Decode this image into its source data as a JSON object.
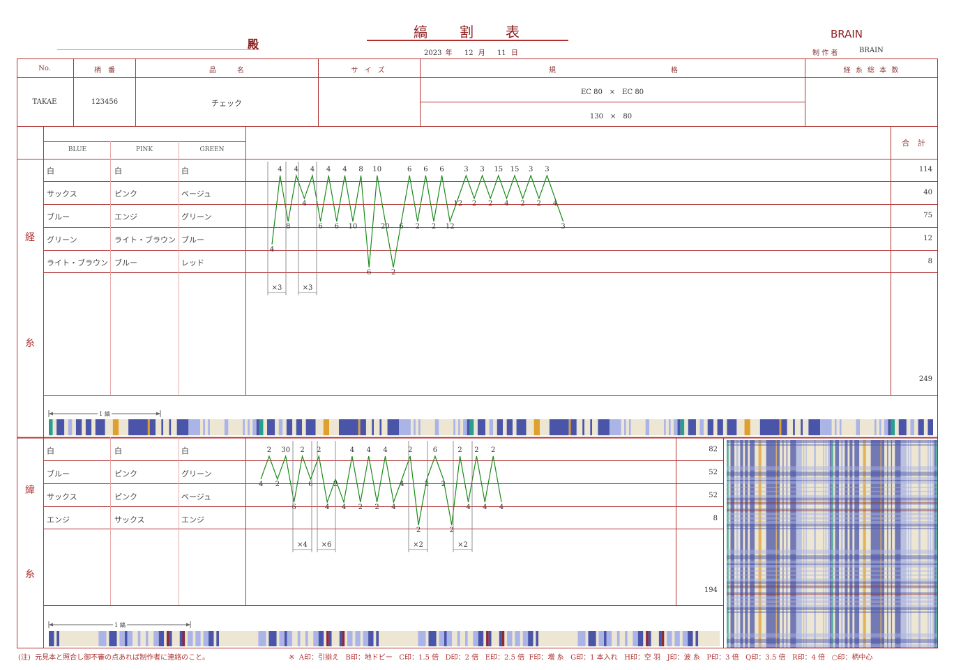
{
  "header": {
    "recipient_suffix": "殿",
    "title": "縞　　割　　表",
    "date": {
      "year": "2023",
      "year_unit": "年",
      "month": "12",
      "month_unit": "月",
      "day": "11",
      "day_unit": "日"
    },
    "brand": "BRAIN",
    "maker_label": "制 作 者",
    "maker_value": "BRAIN"
  },
  "info_table": {
    "headers": {
      "no": "No.",
      "gara_ban": "柄　番",
      "hinmei": "品　　　名",
      "size": "サ イ ズ",
      "kikaku_1": "規",
      "kikaku_2": "格",
      "total_count": "経 糸 総 本 数"
    },
    "values": {
      "no": "TAKAE",
      "gara_ban": "123456",
      "hinmei": "チェック",
      "size": "",
      "spec_line1": "EC 80　×　EC 80",
      "spec_line2": "130　×　80",
      "total_count": ""
    }
  },
  "colorways": [
    "BLUE",
    "PINK",
    "GREEN"
  ],
  "total_header": "合 計",
  "warp": {
    "label_1": "経",
    "label_2": "糸",
    "rows": [
      {
        "c1": "白",
        "c2": "白",
        "c3": "白",
        "total": "114"
      },
      {
        "c1": "サックス",
        "c2": "ピンク",
        "c3": "ベージュ",
        "total": "40"
      },
      {
        "c1": "ブルー",
        "c2": "エンジ",
        "c3": "グリーン",
        "total": "75"
      },
      {
        "c1": "グリーン",
        "c2": "ライト・ブラウン",
        "c3": "ブルー",
        "total": "12"
      },
      {
        "c1": "ライト・ブラウン",
        "c2": "ブルー",
        "c3": "レッド",
        "total": "8"
      }
    ],
    "grand_total": "249",
    "repeat_label": "1 縞",
    "multipliers": [
      "×3",
      "×3"
    ],
    "chain": [
      {
        "v": "4",
        "r": 3
      },
      {
        "v": "4",
        "r": 0
      },
      {
        "v": "8",
        "r": 2
      },
      {
        "v": "4",
        "r": 0
      },
      {
        "v": "4",
        "r": 1
      },
      {
        "v": "4",
        "r": 0
      },
      {
        "v": "6",
        "r": 2
      },
      {
        "v": "4",
        "r": 0
      },
      {
        "v": "6",
        "r": 2
      },
      {
        "v": "4",
        "r": 0
      },
      {
        "v": "10",
        "r": 2
      },
      {
        "v": "8",
        "r": 0
      },
      {
        "v": "6",
        "r": 4
      },
      {
        "v": "10",
        "r": 0
      },
      {
        "v": "20",
        "r": 2
      },
      {
        "v": "2",
        "r": 4
      },
      {
        "v": "6",
        "r": 2
      },
      {
        "v": "6",
        "r": 0
      },
      {
        "v": "2",
        "r": 2
      },
      {
        "v": "6",
        "r": 0
      },
      {
        "v": "2",
        "r": 2
      },
      {
        "v": "6",
        "r": 0
      },
      {
        "v": "12",
        "r": 2
      },
      {
        "v": "12",
        "r": 1
      },
      {
        "v": "3",
        "r": 0
      },
      {
        "v": "2",
        "r": 1
      },
      {
        "v": "3",
        "r": 0
      },
      {
        "v": "2",
        "r": 1
      },
      {
        "v": "15",
        "r": 0
      },
      {
        "v": "4",
        "r": 1
      },
      {
        "v": "15",
        "r": 0
      },
      {
        "v": "2",
        "r": 1
      },
      {
        "v": "3",
        "r": 0
      },
      {
        "v": "2",
        "r": 1
      },
      {
        "v": "3",
        "r": 0
      },
      {
        "v": "4",
        "r": 1
      },
      {
        "v": "3",
        "r": 2
      }
    ]
  },
  "weft": {
    "label_1": "緯",
    "label_2": "糸",
    "rows": [
      {
        "c1": "白",
        "c2": "白",
        "c3": "白",
        "total": "82"
      },
      {
        "c1": "ブルー",
        "c2": "ピンク",
        "c3": "グリーン",
        "total": "52"
      },
      {
        "c1": "サックス",
        "c2": "ピンク",
        "c3": "ベージュ",
        "total": "52"
      },
      {
        "c1": "エンジ",
        "c2": "サックス",
        "c3": "エンジ",
        "total": "8"
      }
    ],
    "grand_total": "194",
    "repeat_label": "1 縞",
    "multipliers": [
      "×4",
      "×6",
      "×2",
      "×2"
    ],
    "chain": [
      {
        "v": "4",
        "r": 1
      },
      {
        "v": "2",
        "r": 0
      },
      {
        "v": "2",
        "r": 1
      },
      {
        "v": "30",
        "r": 0
      },
      {
        "v": "6",
        "r": 2
      },
      {
        "v": "2",
        "r": 0
      },
      {
        "v": "6",
        "r": 1
      },
      {
        "v": "2",
        "r": 0
      },
      {
        "v": "4",
        "r": 2
      },
      {
        "v": "2",
        "r": 1
      },
      {
        "v": "4",
        "r": 2
      },
      {
        "v": "4",
        "r": 0
      },
      {
        "v": "2",
        "r": 2
      },
      {
        "v": "4",
        "r": 0
      },
      {
        "v": "2",
        "r": 2
      },
      {
        "v": "4",
        "r": 0
      },
      {
        "v": "4",
        "r": 2
      },
      {
        "v": "4",
        "r": 1
      },
      {
        "v": "2",
        "r": 0
      },
      {
        "v": "2",
        "r": 3
      },
      {
        "v": "2",
        "r": 1
      },
      {
        "v": "6",
        "r": 0
      },
      {
        "v": "2",
        "r": 1
      },
      {
        "v": "2",
        "r": 3
      },
      {
        "v": "2",
        "r": 0
      },
      {
        "v": "4",
        "r": 2
      },
      {
        "v": "2",
        "r": 0
      },
      {
        "v": "4",
        "r": 2
      },
      {
        "v": "2",
        "r": 0
      },
      {
        "v": "4",
        "r": 2
      }
    ]
  },
  "footer": {
    "note": "(注)  元見本と照合し御不審の点あれば制作者に連絡のこと。",
    "legend": "※  A印：引揃え   B印：地ドビー   C印：1.5 倍   D印：2 倍   E印：2.5 倍  F印：増 糸   G印：1 本入れ   H印：空 羽   J印：波 糸   P印：3 倍   Q印：3.5 倍   R印：4 倍   ○印：柄中心"
  },
  "palette": {
    "white": "#ece6d2",
    "sax": "#aab4e6",
    "blue": "#4a54a8",
    "green": "#2a9e8e",
    "lightbrown": "#e0a030",
    "pink": "#c98aa0",
    "enji": "#8a2a3a",
    "rule": "#b03030"
  }
}
